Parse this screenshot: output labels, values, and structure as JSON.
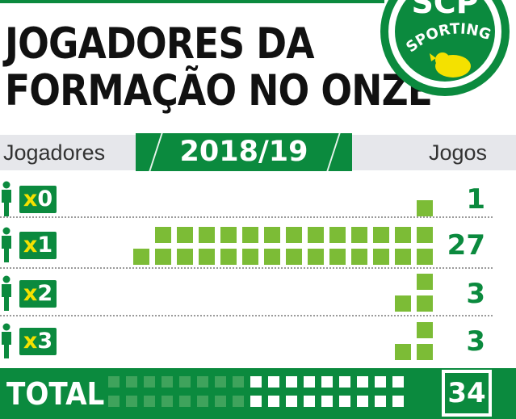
{
  "title": {
    "line1": "JOGADORES DA",
    "line2": "FORMAÇÃO NO ONZE"
  },
  "logo": {
    "top_text": "SCP",
    "ring_text": "SPORTING",
    "icon": "lion-crest-icon"
  },
  "header": {
    "left_label": "Jogadores",
    "season": "2018/19",
    "right_label": "Jogos"
  },
  "colors": {
    "accent": "#0b8a3e",
    "square": "#7cbc36",
    "total_band": "#0b8a3e",
    "total_faint": "#3fa35c",
    "badge_x": "#f4e100"
  },
  "chart_data": {
    "type": "table",
    "title": "JOGADORES DA FORMAÇÃO NO ONZE",
    "season": "2018/19",
    "xlabel": "Jogadores",
    "ylabel": "Jogos",
    "rows": [
      {
        "badge_x": "x",
        "badge_n": "0",
        "players": 0,
        "games": 1
      },
      {
        "badge_x": "x",
        "badge_n": "1",
        "players": 1,
        "games": 27
      },
      {
        "badge_x": "x",
        "badge_n": "2",
        "players": 2,
        "games": 3
      },
      {
        "badge_x": "x",
        "badge_n": "3",
        "players": 3,
        "games": 3
      }
    ],
    "total": {
      "label": "TOTAL",
      "games": 34
    }
  }
}
